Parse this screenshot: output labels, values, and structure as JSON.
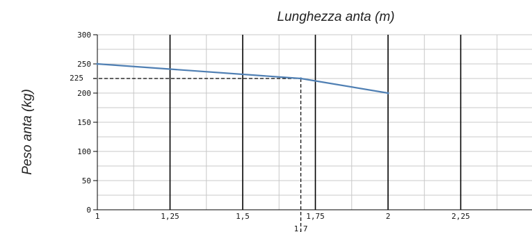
{
  "chart_data": {
    "type": "line",
    "title": "",
    "xlabel": "Lunghezza anta (m)",
    "ylabel": "Peso anta (kg)",
    "xlim": [
      1,
      2.5
    ],
    "ylim": [
      0,
      300
    ],
    "x_ticks": [
      {
        "value": 1,
        "label": "1"
      },
      {
        "value": 1.25,
        "label": "1,25"
      },
      {
        "value": 1.5,
        "label": "1,5"
      },
      {
        "value": 1.75,
        "label": "1,75"
      },
      {
        "value": 2,
        "label": "2"
      },
      {
        "value": 2.25,
        "label": "2,25"
      }
    ],
    "y_ticks": [
      {
        "value": 0,
        "label": "0"
      },
      {
        "value": 50,
        "label": "50"
      },
      {
        "value": 100,
        "label": "100"
      },
      {
        "value": 150,
        "label": "150"
      },
      {
        "value": 200,
        "label": "200"
      },
      {
        "value": 250,
        "label": "250"
      },
      {
        "value": 300,
        "label": "300"
      }
    ],
    "grid": true,
    "series": [
      {
        "x": [
          1,
          1.7,
          2
        ],
        "y": [
          250,
          225,
          200
        ],
        "color": "#4f7fb3"
      }
    ],
    "annotation": {
      "x": 1.7,
      "y": 225,
      "x_label": "1,7",
      "y_label": "225"
    }
  },
  "colors": {
    "line": "#4f7fb3",
    "major_grid": "#000000",
    "minor_grid": "#c8c8c8",
    "text": "#222222"
  }
}
